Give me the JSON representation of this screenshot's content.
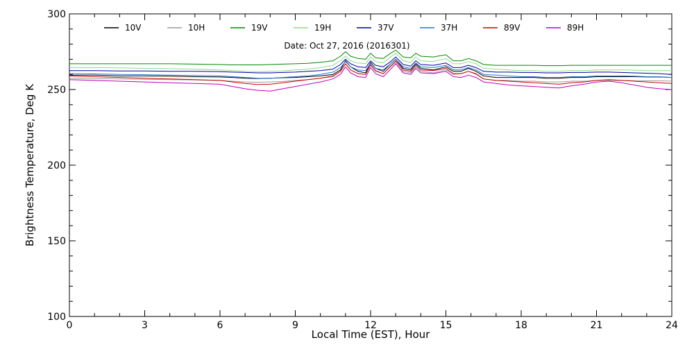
{
  "chart_data": {
    "type": "line",
    "title": "",
    "annotation": "Date: Oct 27, 2016 (2016301)",
    "xlabel": "Local Time (EST), Hour",
    "ylabel": "Brightness Temperature, Deg  K",
    "xlim": [
      0,
      24
    ],
    "ylim": [
      100,
      300
    ],
    "xticks": [
      0,
      3,
      6,
      9,
      12,
      15,
      18,
      21,
      24
    ],
    "yticks": [
      100,
      150,
      200,
      250,
      300
    ],
    "grid": false,
    "legend_position": "top",
    "x": [
      0,
      1,
      2,
      3,
      4,
      5,
      6,
      6.5,
      7,
      7.5,
      8,
      8.5,
      9,
      9.5,
      10,
      10.5,
      10.8,
      11,
      11.2,
      11.5,
      11.8,
      12,
      12.2,
      12.5,
      12.8,
      13,
      13.3,
      13.6,
      13.8,
      14,
      14.5,
      15,
      15.3,
      15.6,
      15.9,
      16.2,
      16.5,
      17,
      17.5,
      18,
      18.5,
      19,
      19.5,
      20,
      20.5,
      21,
      21.5,
      22,
      22.5,
      23,
      23.5,
      24
    ],
    "series": [
      {
        "name": "10V",
        "color": "#000000",
        "values": [
          259.5,
          259.5,
          259,
          259,
          258.8,
          258.5,
          258.3,
          258,
          257.5,
          257.3,
          257.5,
          257.8,
          258,
          258.5,
          259,
          260,
          263,
          269,
          265,
          262,
          261,
          268,
          264,
          262,
          267,
          270,
          264,
          263,
          267,
          264,
          263,
          265,
          262,
          262,
          264,
          262,
          259,
          258,
          258,
          258,
          258,
          257.5,
          257.5,
          258,
          258,
          258.5,
          258.5,
          258.5,
          258.5,
          258.3,
          258.3,
          258
        ]
      },
      {
        "name": "10H",
        "color": "#9a9a9a",
        "values": [
          257.5,
          257.3,
          257,
          256.8,
          256.5,
          256.3,
          256,
          255.5,
          255,
          254.8,
          255,
          255.3,
          256,
          256.5,
          257.5,
          258.5,
          262,
          267,
          263,
          260.5,
          260,
          266,
          262,
          260.5,
          265,
          268,
          262,
          261,
          265,
          262,
          261,
          263,
          260,
          260.5,
          262,
          260,
          257,
          256,
          256,
          255.5,
          255.5,
          255,
          255,
          255.5,
          255.5,
          256,
          256,
          256,
          255.8,
          255.8,
          255.8,
          255.5
        ]
      },
      {
        "name": "19V",
        "color": "#008800",
        "values": [
          267,
          267,
          267,
          267,
          267,
          266.8,
          266.5,
          266.3,
          266.3,
          266.3,
          266.5,
          266.8,
          267,
          267.3,
          268,
          269,
          272,
          275,
          272,
          270.5,
          270,
          274,
          271,
          270.5,
          274,
          276,
          271.5,
          271,
          274,
          272,
          271.5,
          273,
          269,
          269,
          270.5,
          269,
          266.5,
          266,
          266,
          266,
          266,
          265.8,
          265.8,
          266,
          266,
          266,
          266,
          266,
          266,
          266,
          266,
          266
        ]
      },
      {
        "name": "19H",
        "color": "#88dd88",
        "values": [
          264.5,
          264.5,
          264.3,
          264,
          263.8,
          263.5,
          263,
          262.5,
          262,
          261.8,
          262,
          262.3,
          263,
          263.5,
          264.5,
          266,
          269,
          272,
          269,
          267.5,
          267,
          271.5,
          268.5,
          267.5,
          271.5,
          274,
          269,
          268,
          271.5,
          269,
          268.5,
          270.5,
          267,
          267,
          268.5,
          267,
          264,
          263.5,
          263,
          262.5,
          262.5,
          262,
          262,
          262.5,
          262.5,
          263,
          263,
          263,
          262.8,
          262.5,
          262.5,
          262.5
        ]
      },
      {
        "name": "37V",
        "color": "#0000aa",
        "values": [
          262.5,
          262.5,
          262.3,
          262.3,
          262,
          262,
          261.8,
          261.5,
          261.3,
          261,
          261,
          261.3,
          261.5,
          262,
          262.5,
          263.5,
          266.5,
          270,
          267,
          265,
          264.5,
          269,
          266,
          265,
          268.5,
          271.5,
          266.5,
          265.5,
          269,
          266.5,
          266,
          267.5,
          264.5,
          264.5,
          266,
          264.5,
          262,
          261.5,
          261.5,
          261.3,
          261.3,
          261,
          261,
          261.3,
          261.3,
          261.5,
          261.5,
          261.3,
          261,
          260.8,
          260.5,
          260
        ]
      },
      {
        "name": "37H",
        "color": "#2277cc",
        "values": [
          260.5,
          260.3,
          260,
          259.8,
          259.5,
          259.3,
          259,
          258.5,
          258,
          257.5,
          257.5,
          258,
          258.5,
          259,
          260,
          261.5,
          264.5,
          268.5,
          265,
          263,
          262.5,
          267.5,
          264,
          263,
          267,
          270,
          265,
          264,
          267.5,
          265,
          264.5,
          266,
          263,
          263,
          264.5,
          263,
          260,
          259.5,
          259,
          258.5,
          258.5,
          258,
          258,
          258.5,
          258.5,
          259,
          259,
          259,
          258.8,
          258.5,
          258.5,
          258
        ]
      },
      {
        "name": "89V",
        "color": "#cc0000",
        "values": [
          259,
          258.5,
          258,
          257.5,
          257,
          256.5,
          256,
          255,
          254,
          253.3,
          253.5,
          254.5,
          255.5,
          256.5,
          257.5,
          259,
          262,
          267,
          263,
          260.5,
          260,
          266.5,
          262.5,
          260.5,
          265.5,
          269,
          263,
          262,
          266,
          263,
          262.5,
          264,
          260.5,
          260.5,
          262,
          260.5,
          257,
          256,
          255.5,
          255,
          254.5,
          254,
          253.5,
          254.5,
          255,
          256,
          256.5,
          256,
          255.5,
          255,
          254.5,
          254
        ]
      },
      {
        "name": "89H",
        "color": "#bb00bb",
        "values": [
          256.5,
          256,
          255.5,
          255,
          254.5,
          254,
          253.5,
          252,
          250.5,
          249.5,
          249,
          250.5,
          252,
          253.5,
          255,
          257,
          260,
          265,
          261,
          258.5,
          258,
          264.5,
          260.5,
          258.5,
          263.5,
          267,
          261,
          260,
          264,
          261,
          260.5,
          262,
          258.5,
          258,
          259.5,
          258,
          255,
          254,
          253,
          252.5,
          252,
          251.5,
          251,
          252.5,
          253.5,
          255,
          255.5,
          254.5,
          253,
          251.5,
          250.5,
          250
        ]
      }
    ]
  }
}
